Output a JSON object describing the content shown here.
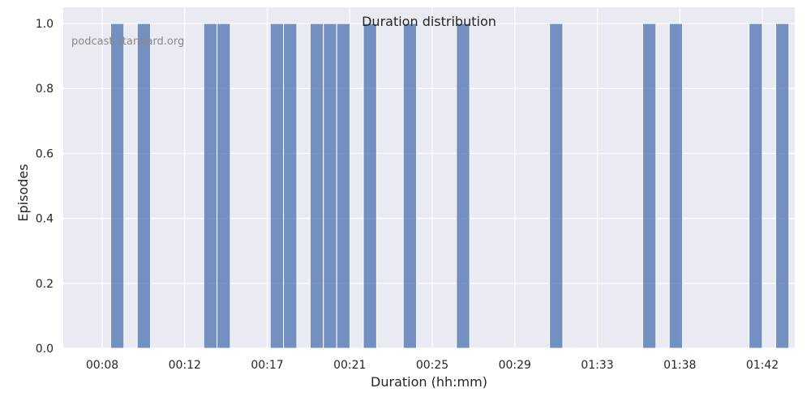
{
  "chart_data": {
    "type": "bar",
    "title": "Duration distribution",
    "xlabel": "Duration (hh:mm)",
    "ylabel": "Episodes",
    "watermark": "podcast-standard.org",
    "ylim": [
      0,
      1.05
    ],
    "y_ticks": [
      0.0,
      0.2,
      0.4,
      0.6,
      0.8,
      1.0
    ],
    "x_ticks": [
      "00:08",
      "00:12",
      "00:17",
      "00:21",
      "00:25",
      "00:29",
      "01:33",
      "01:38",
      "01:42"
    ],
    "bin_count": 50,
    "bins": [
      1,
      3,
      8,
      9,
      13,
      14,
      16,
      17,
      18,
      20,
      23,
      27,
      34,
      41,
      43,
      49,
      51
    ],
    "values": [
      1,
      1,
      1,
      1,
      1,
      1,
      1,
      1,
      1,
      1,
      1,
      1,
      1,
      1,
      1,
      1,
      1
    ],
    "bar_color": "#4c72b0",
    "background": "#eaeaf2",
    "grid": true
  }
}
